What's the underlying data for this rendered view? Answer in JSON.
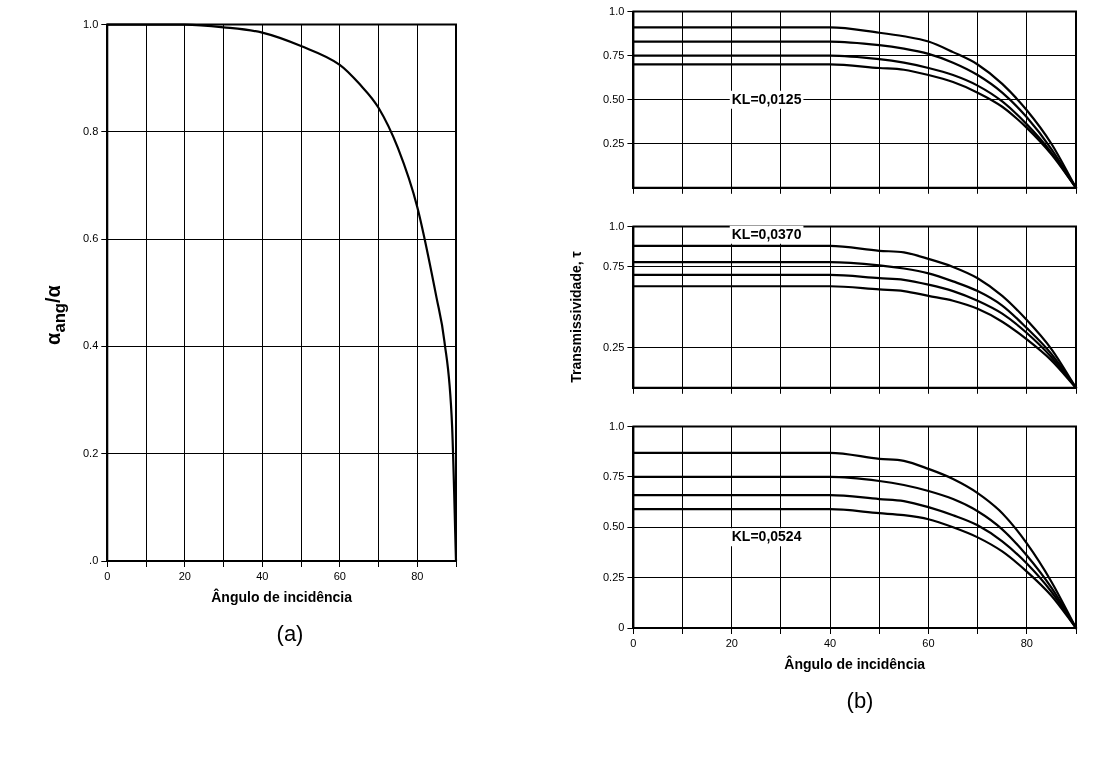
{
  "chart_data": [
    {
      "type": "line",
      "title": "(a)",
      "xlabel": "Ângulo de incidência",
      "ylabel": "α$_{ang}$/α",
      "x": [
        0,
        20,
        30,
        40,
        50,
        60,
        65,
        70,
        75,
        80,
        85,
        87,
        89,
        90
      ],
      "xlim": [
        0,
        90
      ],
      "ylim": [
        0,
        1
      ],
      "xticks": [
        0,
        {
          "value": 10,
          "label": null
        },
        20,
        {
          "value": 30,
          "label": null
        },
        40,
        {
          "value": 50,
          "label": null
        },
        60,
        {
          "value": 70,
          "label": null
        },
        80,
        {
          "value": 90,
          "label": null
        }
      ],
      "yticks": [
        {
          "value": 0,
          "label": ".0"
        },
        0.2,
        0.4,
        0.6,
        0.8,
        {
          "value": 1,
          "label": "1.0"
        }
      ],
      "series": [
        {
          "color": "#000000",
          "values": [
            1.0,
            1.0,
            0.995,
            0.985,
            0.96,
            0.925,
            0.89,
            0.845,
            0.77,
            0.66,
            0.49,
            0.41,
            0.25,
            0
          ]
        }
      ],
      "grid": true,
      "legend": false,
      "marker": "none",
      "line_style": "solid"
    },
    {
      "type": "line",
      "annotations": [
        "KL=0,0125"
      ],
      "x": [
        0,
        10,
        20,
        30,
        40,
        50,
        55,
        60,
        65,
        70,
        75,
        80,
        85,
        90
      ],
      "xlim": [
        0,
        90
      ],
      "ylim": [
        0,
        1
      ],
      "xticks": [
        0,
        10,
        20,
        30,
        40,
        50,
        60,
        70,
        80,
        90
      ],
      "yticks": [
        {
          "value": 1,
          "label": "1.0"
        },
        0.75,
        {
          "value": 0.5,
          "label": "0.50"
        },
        0.25
      ],
      "series": [
        {
          "color": "#000000",
          "values": [
            0.91,
            0.91,
            0.91,
            0.91,
            0.91,
            0.88,
            0.86,
            0.83,
            0.77,
            0.7,
            0.59,
            0.44,
            0.25,
            0
          ]
        },
        {
          "color": "#000000",
          "values": [
            0.83,
            0.83,
            0.83,
            0.83,
            0.83,
            0.81,
            0.79,
            0.76,
            0.71,
            0.64,
            0.54,
            0.4,
            0.22,
            0
          ]
        },
        {
          "color": "#000000",
          "values": [
            0.75,
            0.75,
            0.75,
            0.75,
            0.75,
            0.73,
            0.71,
            0.68,
            0.64,
            0.58,
            0.49,
            0.36,
            0.2,
            0
          ]
        },
        {
          "color": "#000000",
          "values": [
            0.7,
            0.7,
            0.7,
            0.7,
            0.7,
            0.68,
            0.67,
            0.64,
            0.6,
            0.54,
            0.46,
            0.34,
            0.19,
            0
          ]
        }
      ],
      "grid": true,
      "legend": false,
      "marker": "none",
      "line_style": "solid",
      "tick_labels": "y"
    },
    {
      "type": "line",
      "ylabel": "Transmissividade, τ",
      "annotations": [
        "KL=0,0370"
      ],
      "x": [
        0,
        10,
        20,
        30,
        40,
        50,
        55,
        60,
        65,
        70,
        75,
        80,
        85,
        90
      ],
      "xlim": [
        0,
        90
      ],
      "ylim": [
        0,
        1
      ],
      "xticks": [
        0,
        10,
        20,
        30,
        40,
        50,
        60,
        70,
        80,
        90
      ],
      "yticks": [
        {
          "value": 1,
          "label": "1.0"
        },
        0.75,
        0.25
      ],
      "series": [
        {
          "color": "#000000",
          "values": [
            0.88,
            0.88,
            0.88,
            0.88,
            0.88,
            0.85,
            0.84,
            0.8,
            0.75,
            0.68,
            0.57,
            0.42,
            0.24,
            0
          ]
        },
        {
          "color": "#000000",
          "values": [
            0.78,
            0.78,
            0.78,
            0.78,
            0.78,
            0.76,
            0.74,
            0.71,
            0.66,
            0.6,
            0.51,
            0.37,
            0.21,
            0
          ]
        },
        {
          "color": "#000000",
          "values": [
            0.7,
            0.7,
            0.7,
            0.7,
            0.7,
            0.68,
            0.67,
            0.64,
            0.6,
            0.54,
            0.46,
            0.34,
            0.19,
            0
          ]
        },
        {
          "color": "#000000",
          "values": [
            0.63,
            0.63,
            0.63,
            0.63,
            0.63,
            0.61,
            0.6,
            0.57,
            0.54,
            0.49,
            0.41,
            0.3,
            0.17,
            0
          ]
        }
      ],
      "grid": true,
      "legend": false,
      "marker": "none",
      "line_style": "solid",
      "tick_labels": "y"
    },
    {
      "type": "line",
      "title": "(b)",
      "xlabel": "Ângulo de incidência",
      "annotations": [
        "KL=0,0524"
      ],
      "x": [
        0,
        10,
        20,
        30,
        40,
        50,
        55,
        60,
        65,
        70,
        75,
        80,
        85,
        90
      ],
      "xlim": [
        0,
        90
      ],
      "ylim": [
        0,
        1
      ],
      "xticks": [
        0,
        {
          "value": 10,
          "label": null
        },
        20,
        {
          "value": 30,
          "label": null
        },
        40,
        {
          "value": 50,
          "label": null
        },
        60,
        {
          "value": 70,
          "label": null
        },
        80,
        {
          "value": 90,
          "label": null
        }
      ],
      "yticks": [
        0,
        0.25,
        {
          "value": 0.5,
          "label": "0.50"
        },
        0.75,
        {
          "value": 1,
          "label": "1.0"
        }
      ],
      "series": [
        {
          "color": "#000000",
          "values": [
            0.87,
            0.87,
            0.87,
            0.87,
            0.87,
            0.84,
            0.83,
            0.79,
            0.74,
            0.67,
            0.57,
            0.42,
            0.23,
            0
          ]
        },
        {
          "color": "#000000",
          "values": [
            0.75,
            0.75,
            0.75,
            0.75,
            0.75,
            0.73,
            0.71,
            0.68,
            0.64,
            0.58,
            0.49,
            0.36,
            0.2,
            0
          ]
        },
        {
          "color": "#000000",
          "values": [
            0.66,
            0.66,
            0.66,
            0.66,
            0.66,
            0.64,
            0.63,
            0.6,
            0.56,
            0.51,
            0.43,
            0.32,
            0.18,
            0
          ]
        },
        {
          "color": "#000000",
          "values": [
            0.59,
            0.59,
            0.59,
            0.59,
            0.59,
            0.57,
            0.56,
            0.54,
            0.5,
            0.45,
            0.38,
            0.28,
            0.16,
            0
          ]
        }
      ],
      "grid": true,
      "legend": false,
      "marker": "none",
      "line_style": "solid"
    }
  ]
}
